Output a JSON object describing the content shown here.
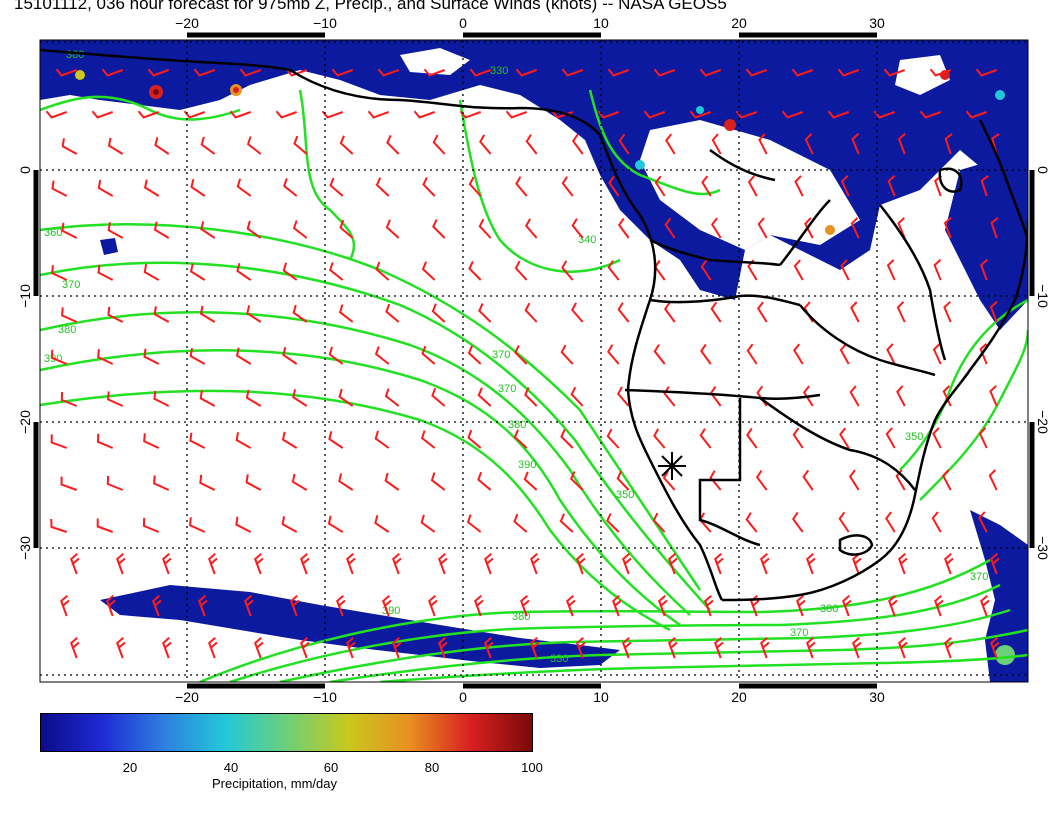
{
  "title": "15101112, 036 hour forecast for 975mb Z, Precip., and Surface Winds (knots) -- NASA GEOS5",
  "axes": {
    "lon_ticks": [
      "−20",
      "−10",
      "0",
      "10",
      "20",
      "30"
    ],
    "lat_ticks": [
      "0",
      "−10",
      "−20",
      "−30"
    ]
  },
  "contour_labels": [
    "360",
    "370",
    "380",
    "390",
    "340",
    "350",
    "330"
  ],
  "colorbar": {
    "label": "Precipitation, mm/day",
    "ticks": [
      "20",
      "40",
      "60",
      "80",
      "100"
    ],
    "colors": [
      "#0c0c8a",
      "#1e2ad4",
      "#2e7fe0",
      "#22c8d8",
      "#6cd07a",
      "#c8c81e",
      "#e89020",
      "#d82020",
      "#7a0a0a"
    ]
  },
  "colors": {
    "contours": "#22e022",
    "wind_barbs": "#ff1a1a",
    "coastline": "#000000",
    "precip_low": "#0c1aa0"
  }
}
